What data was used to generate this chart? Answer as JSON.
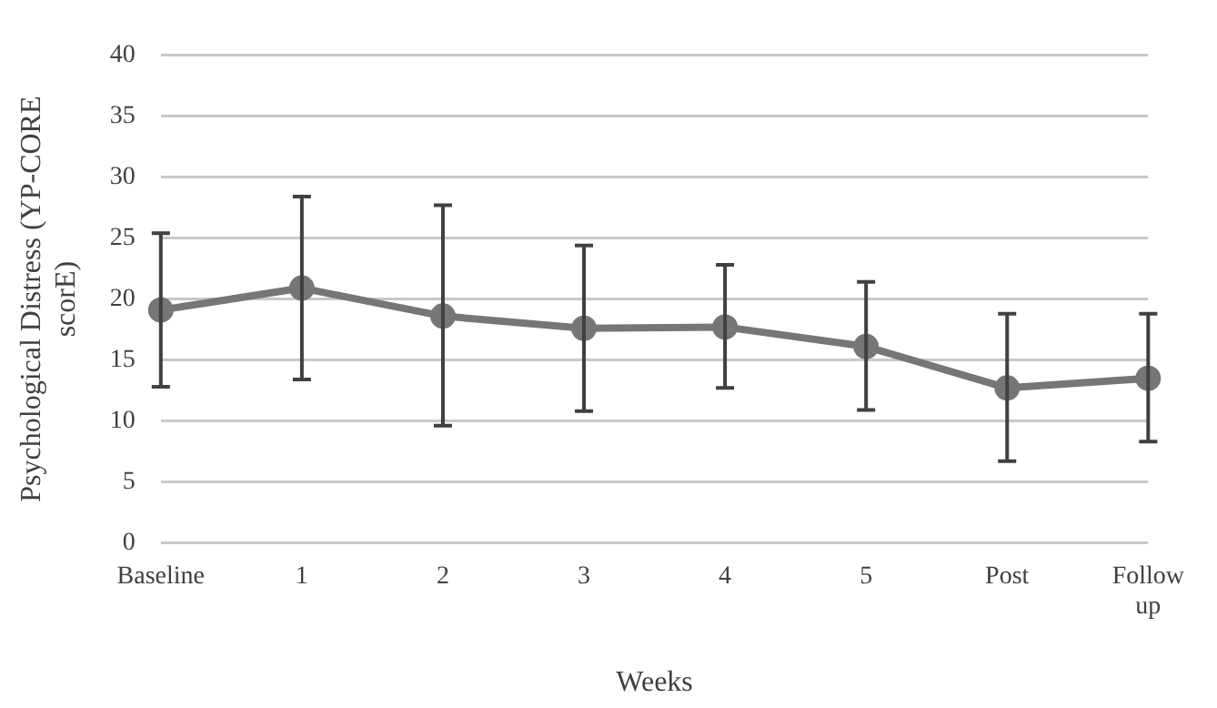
{
  "chart_data": {
    "type": "line",
    "xlabel": "Weeks",
    "ylabel": "Psychological Distress (YP-CORE scorE)",
    "categories": [
      "Baseline",
      "1",
      "2",
      "3",
      "4",
      "5",
      "Post",
      "Follow up"
    ],
    "series": [
      {
        "color": "#767676",
        "values": [
          19.1,
          20.9,
          18.6,
          17.6,
          17.7,
          16.1,
          12.7,
          13.5
        ],
        "errors": [
          [
            12.8,
            25.4
          ],
          [
            13.4,
            28.4
          ],
          [
            9.6,
            27.7
          ],
          [
            10.8,
            24.4
          ],
          [
            12.7,
            22.8
          ],
          [
            10.9,
            21.4
          ],
          [
            6.7,
            18.8
          ],
          [
            8.3,
            18.8
          ]
        ]
      }
    ],
    "ylim": [
      0,
      40
    ],
    "yticks": [
      0,
      5,
      10,
      15,
      20,
      25,
      30,
      35,
      40
    ],
    "grid": "y",
    "legend": false,
    "marker": "circle",
    "line_style": "solid"
  }
}
